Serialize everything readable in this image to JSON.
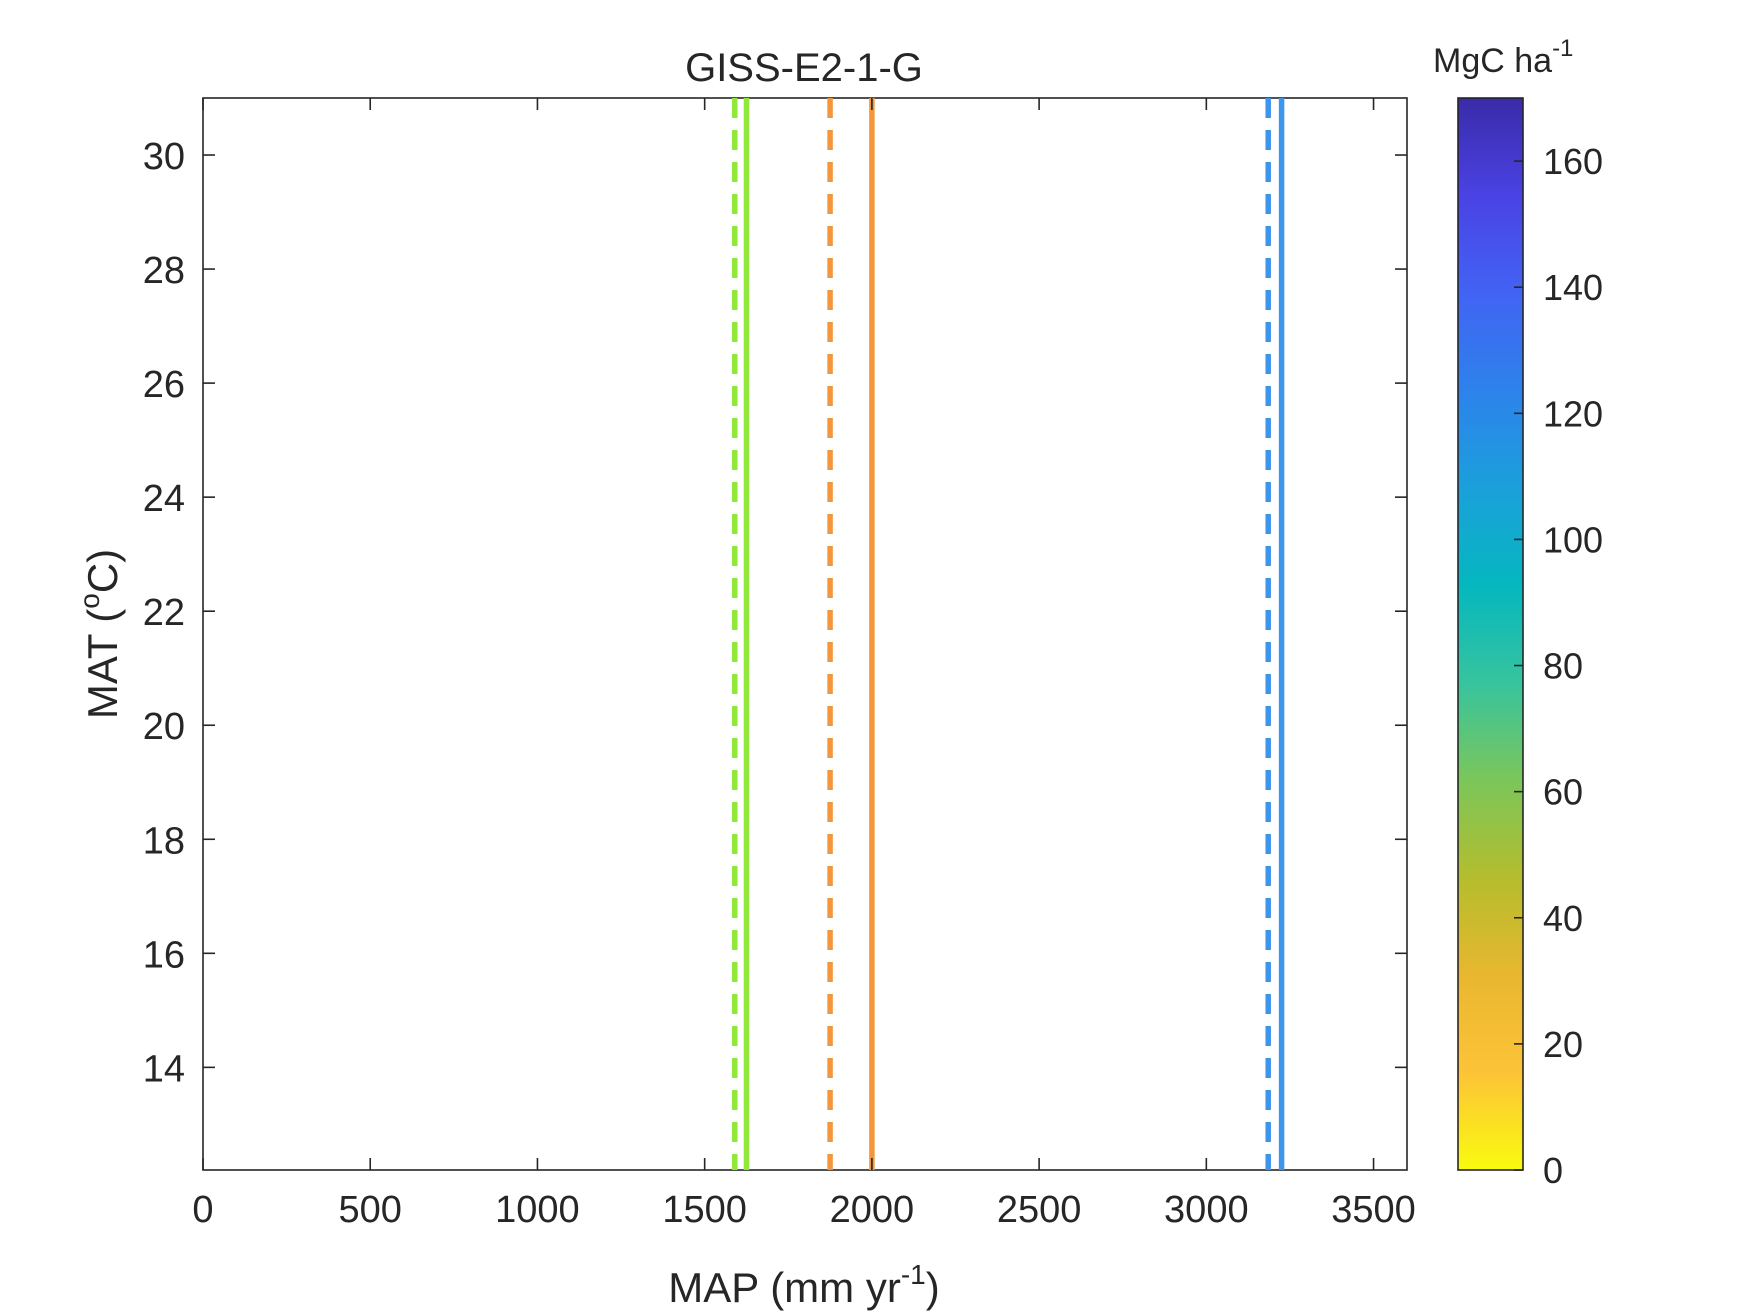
{
  "chart_data": {
    "type": "line",
    "title": "GISS-E2-1-G",
    "xlabel": {
      "main": "MAP (mm yr",
      "sup": "-1",
      "tail": ")"
    },
    "ylabel": {
      "main": "MAT (",
      "sup": "o",
      "tail": "C)"
    },
    "xlim": [
      0,
      3600
    ],
    "ylim": [
      12.2,
      31
    ],
    "xticks": [
      0,
      500,
      1000,
      1500,
      2000,
      2500,
      3000,
      3500
    ],
    "yticks": [
      14,
      16,
      18,
      20,
      22,
      24,
      26,
      28,
      30
    ],
    "grid": false,
    "series": [
      {
        "x": 1590,
        "style": "dashed",
        "color": "#8fe83a"
      },
      {
        "x": 1625,
        "style": "solid",
        "color": "#8fe83a"
      },
      {
        "x": 1875,
        "style": "dashed",
        "color": "#f4973a"
      },
      {
        "x": 2000,
        "style": "solid",
        "color": "#f4973a"
      },
      {
        "x": 3185,
        "style": "dashed",
        "color": "#3d96ec"
      },
      {
        "x": 3225,
        "style": "solid",
        "color": "#3d96ec"
      }
    ],
    "colorbar": {
      "label": {
        "main": "MgC ha",
        "sup": "-1"
      },
      "range": [
        0,
        170
      ],
      "ticks": [
        0,
        20,
        40,
        60,
        80,
        100,
        120,
        140,
        160
      ],
      "colormap": "parula-reversed",
      "stops": [
        "#f9fb0e",
        "#fdc338",
        "#e8b72f",
        "#b4bd2e",
        "#7bc65a",
        "#37c49e",
        "#05b7bf",
        "#1ba0db",
        "#2d82eb",
        "#4263f4",
        "#4a42e4",
        "#3a2ba8"
      ]
    }
  }
}
